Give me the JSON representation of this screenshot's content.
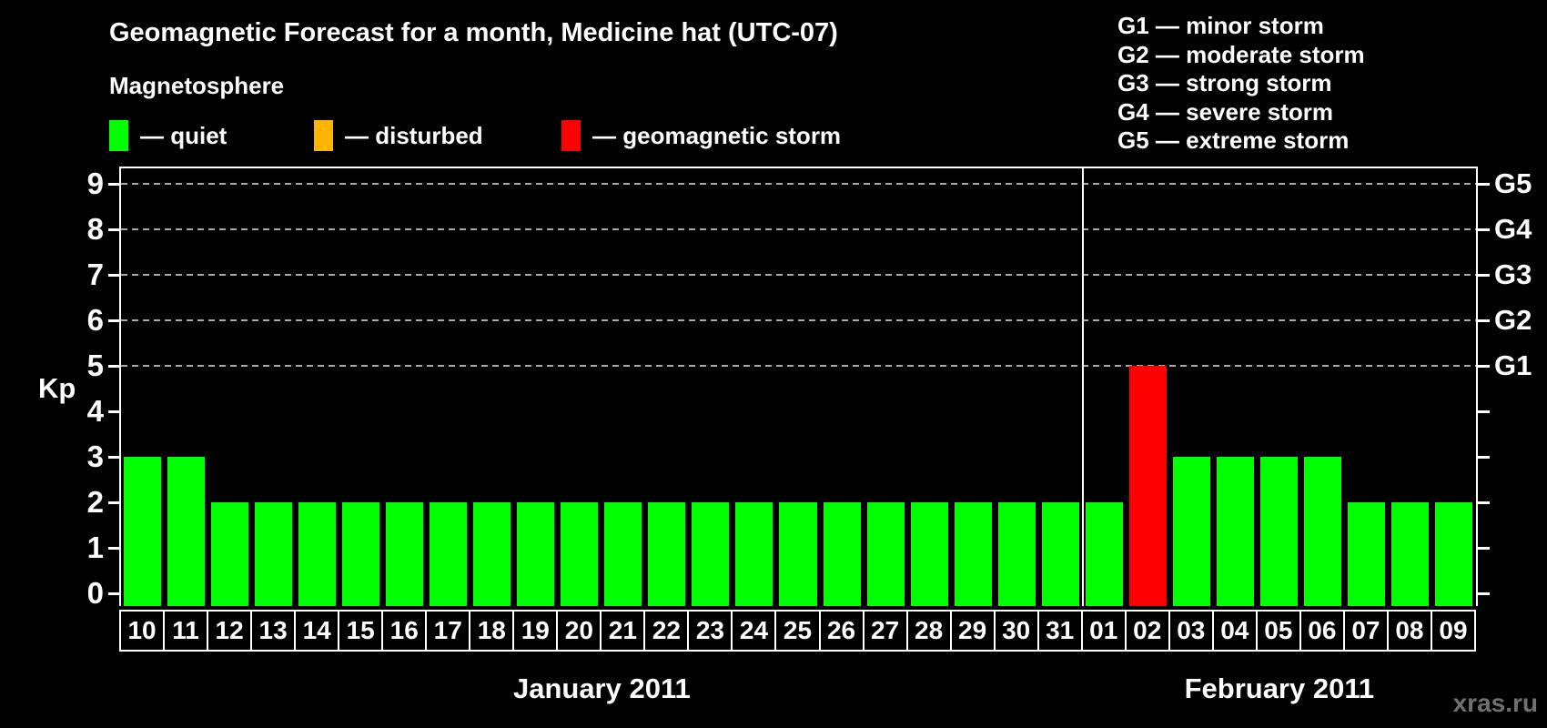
{
  "watermark": "xras.ru",
  "chart_data": {
    "type": "bar",
    "title": "Geomagnetic Forecast for a month, Medicine hat (UTC-07)",
    "ylabel": "Kp",
    "ylim": [
      0,
      9
    ],
    "y_ticks": [
      0,
      1,
      2,
      3,
      4,
      5,
      6,
      7,
      8,
      9
    ],
    "grid_levels": [
      5,
      6,
      7,
      8,
      9
    ],
    "grid_style": "dashed",
    "legend_position": "top-left",
    "legend": {
      "heading": "Magnetosphere",
      "items": [
        {
          "key": "quiet",
          "label": "— quiet",
          "color": "#00ff00"
        },
        {
          "key": "disturbed",
          "label": "— disturbed",
          "color": "#ffb400"
        },
        {
          "key": "storm",
          "label": "— geomagnetic storm",
          "color": "#ff0000"
        }
      ]
    },
    "storm_scale": [
      {
        "level": 5,
        "axis_label": "G1",
        "legend_label": "G1 — minor storm"
      },
      {
        "level": 6,
        "axis_label": "G2",
        "legend_label": "G2 — moderate storm"
      },
      {
        "level": 7,
        "axis_label": "G3",
        "legend_label": "G3 — strong storm"
      },
      {
        "level": 8,
        "axis_label": "G4",
        "legend_label": "G4 — severe storm"
      },
      {
        "level": 9,
        "axis_label": "G5",
        "legend_label": "G5 — extreme storm"
      }
    ],
    "months": [
      {
        "label": "January 2011",
        "days": [
          {
            "day": "10",
            "kp": 3,
            "status": "quiet"
          },
          {
            "day": "11",
            "kp": 3,
            "status": "quiet"
          },
          {
            "day": "12",
            "kp": 2,
            "status": "quiet"
          },
          {
            "day": "13",
            "kp": 2,
            "status": "quiet"
          },
          {
            "day": "14",
            "kp": 2,
            "status": "quiet"
          },
          {
            "day": "15",
            "kp": 2,
            "status": "quiet"
          },
          {
            "day": "16",
            "kp": 2,
            "status": "quiet"
          },
          {
            "day": "17",
            "kp": 2,
            "status": "quiet"
          },
          {
            "day": "18",
            "kp": 2,
            "status": "quiet"
          },
          {
            "day": "19",
            "kp": 2,
            "status": "quiet"
          },
          {
            "day": "20",
            "kp": 2,
            "status": "quiet"
          },
          {
            "day": "21",
            "kp": 2,
            "status": "quiet"
          },
          {
            "day": "22",
            "kp": 2,
            "status": "quiet"
          },
          {
            "day": "23",
            "kp": 2,
            "status": "quiet"
          },
          {
            "day": "24",
            "kp": 2,
            "status": "quiet"
          },
          {
            "day": "25",
            "kp": 2,
            "status": "quiet"
          },
          {
            "day": "26",
            "kp": 2,
            "status": "quiet"
          },
          {
            "day": "27",
            "kp": 2,
            "status": "quiet"
          },
          {
            "day": "28",
            "kp": 2,
            "status": "quiet"
          },
          {
            "day": "29",
            "kp": 2,
            "status": "quiet"
          },
          {
            "day": "30",
            "kp": 2,
            "status": "quiet"
          },
          {
            "day": "31",
            "kp": 2,
            "status": "quiet"
          }
        ]
      },
      {
        "label": "February 2011",
        "days": [
          {
            "day": "01",
            "kp": 2,
            "status": "quiet"
          },
          {
            "day": "02",
            "kp": 5,
            "status": "storm"
          },
          {
            "day": "03",
            "kp": 3,
            "status": "quiet"
          },
          {
            "day": "04",
            "kp": 3,
            "status": "quiet"
          },
          {
            "day": "05",
            "kp": 3,
            "status": "quiet"
          },
          {
            "day": "06",
            "kp": 3,
            "status": "quiet"
          },
          {
            "day": "07",
            "kp": 2,
            "status": "quiet"
          },
          {
            "day": "08",
            "kp": 2,
            "status": "quiet"
          },
          {
            "day": "09",
            "kp": 2,
            "status": "quiet"
          }
        ]
      }
    ]
  }
}
